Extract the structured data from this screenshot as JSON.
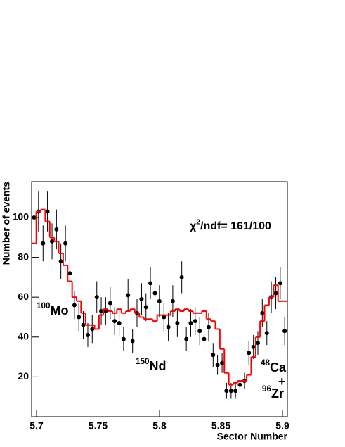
{
  "chart_data": {
    "type": "scatter",
    "x_label": "Sector Number",
    "y_label": "Number of events",
    "xlim": [
      5.696,
      5.904
    ],
    "ylim": [
      0,
      118
    ],
    "xticks": [
      5.7,
      5.75,
      5.8,
      5.85,
      5.9
    ],
    "yticks": [
      20,
      40,
      60,
      80,
      100
    ],
    "annotations": {
      "chi": {
        "pre": "χ",
        "sup": "2",
        "post": "/ndf= 161/100"
      },
      "mo": {
        "sup": "100",
        "text": "Mo"
      },
      "nd": {
        "sup": "150",
        "text": "Nd"
      },
      "ca": {
        "sup": "48",
        "text": "Ca"
      },
      "plus": "+",
      "zr": {
        "sup": "96",
        "text": "Zr"
      }
    },
    "x": [
      5.698,
      5.7016,
      5.7053,
      5.7089,
      5.7126,
      5.7162,
      5.7198,
      5.7235,
      5.7271,
      5.7308,
      5.7344,
      5.738,
      5.7417,
      5.7453,
      5.749,
      5.7526,
      5.7562,
      5.7599,
      5.7635,
      5.7672,
      5.7708,
      5.7744,
      5.7781,
      5.7817,
      5.7854,
      5.789,
      5.7926,
      5.7963,
      5.7999,
      5.8036,
      5.8072,
      5.8108,
      5.8145,
      5.8181,
      5.8218,
      5.8254,
      5.829,
      5.8327,
      5.8363,
      5.84,
      5.8436,
      5.8472,
      5.8509,
      5.8545,
      5.8582,
      5.8618,
      5.8654,
      5.8691,
      5.8727,
      5.8764,
      5.88,
      5.8836,
      5.8873,
      5.8909,
      5.8946,
      5.8982,
      5.9018
    ],
    "series": [
      {
        "color": "#000000",
        "values": [
          100,
          103,
          87,
          103,
          88,
          94,
          78,
          87,
          72,
          56,
          50,
          46,
          41,
          44,
          60,
          53,
          53,
          57,
          48,
          47,
          39,
          61,
          38,
          52,
          59,
          55,
          67,
          62,
          58,
          50,
          45,
          58,
          47,
          70,
          39,
          47,
          48,
          43,
          39,
          45,
          31,
          26,
          27,
          13,
          13,
          13,
          16,
          18,
          32,
          35,
          37,
          52,
          42,
          60,
          62,
          67,
          43
        ],
        "errors": [
          10,
          10,
          9,
          10,
          9,
          10,
          9,
          9,
          8,
          7,
          7,
          7,
          6,
          7,
          8,
          7,
          7,
          8,
          7,
          7,
          6,
          8,
          6,
          7,
          8,
          7,
          8,
          8,
          8,
          7,
          7,
          8,
          7,
          8,
          6,
          7,
          7,
          7,
          6,
          7,
          6,
          5,
          5,
          4,
          4,
          4,
          4,
          4,
          6,
          6,
          6,
          7,
          6,
          8,
          8,
          8,
          7
        ]
      },
      {
        "color": "#ff0000",
        "style": "step",
        "values": [
          87,
          103,
          104,
          98,
          90,
          88,
          82,
          76,
          68,
          60,
          58,
          52,
          46,
          46,
          44,
          51,
          54,
          53,
          52,
          54,
          52,
          53,
          54,
          52,
          50,
          49,
          49,
          48,
          51,
          51,
          51,
          53,
          54,
          53,
          54,
          53,
          52,
          52,
          53,
          49,
          48,
          44,
          34,
          22,
          16,
          17,
          18,
          18,
          21,
          30,
          40,
          48,
          56,
          60,
          66,
          58,
          58
        ]
      }
    ]
  }
}
